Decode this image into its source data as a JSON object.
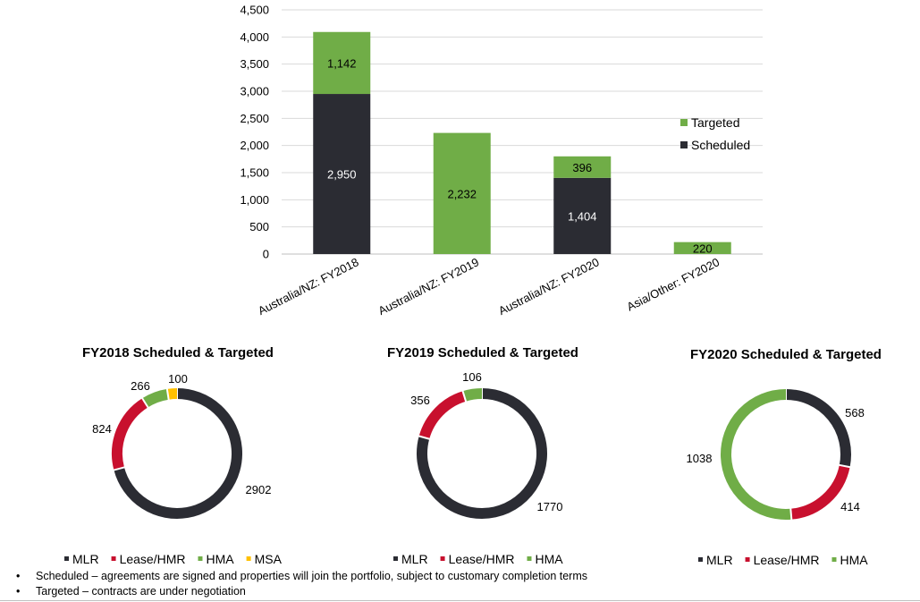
{
  "colors": {
    "targeted": "#70ad47",
    "scheduled": "#2b2c33",
    "mlr": "#2b2c33",
    "lease_hmr": "#c8102e",
    "hma": "#70ad47",
    "msa": "#ffc000",
    "grid": "#d9d9d9"
  },
  "chart_data": [
    {
      "type": "bar",
      "stacked": true,
      "categories": [
        "Australia/NZ: FY2018",
        "Australia/NZ: FY2019",
        "Australia/NZ: FY2020",
        "Asia/Other: FY2020"
      ],
      "series": [
        {
          "name": "Scheduled",
          "values": [
            2950,
            0,
            1404,
            0
          ],
          "labels": [
            "2,950",
            "",
            "1,404",
            ""
          ]
        },
        {
          "name": "Targeted",
          "values": [
            1142,
            2232,
            396,
            220
          ],
          "labels": [
            "1,142",
            "2,232",
            "396",
            "220"
          ]
        }
      ],
      "ylim": [
        0,
        4500
      ],
      "yticks": [
        0,
        500,
        1000,
        1500,
        2000,
        2500,
        3000,
        3500,
        4000,
        4500
      ],
      "ytick_labels": [
        "0",
        "500",
        "1,000",
        "1,500",
        "2,000",
        "2,500",
        "3,000",
        "3,500",
        "4,000",
        "4,500"
      ],
      "grid": true,
      "legend": {
        "placement": "right",
        "entries": [
          "Targeted",
          "Scheduled"
        ]
      }
    },
    {
      "type": "pie",
      "donut": true,
      "title": "FY2018 Scheduled & Targeted",
      "slices": [
        {
          "name": "MLR",
          "value": 2902,
          "label": "2902"
        },
        {
          "name": "Lease/HMR",
          "value": 824,
          "label": "824"
        },
        {
          "name": "HMA",
          "value": 266,
          "label": "266"
        },
        {
          "name": "MSA",
          "value": 100,
          "label": "100"
        }
      ],
      "legend": [
        "MLR",
        "Lease/HMR",
        "HMA",
        "MSA"
      ]
    },
    {
      "type": "pie",
      "donut": true,
      "title": "FY2019 Scheduled & Targeted",
      "slices": [
        {
          "name": "MLR",
          "value": 1770,
          "label": "1770"
        },
        {
          "name": "Lease/HMR",
          "value": 356,
          "label": "356"
        },
        {
          "name": "HMA",
          "value": 106,
          "label": "106"
        }
      ],
      "legend": [
        "MLR",
        "Lease/HMR",
        "HMA"
      ]
    },
    {
      "type": "pie",
      "donut": true,
      "title": "FY2020 Scheduled & Targeted",
      "slices": [
        {
          "name": "MLR",
          "value": 568,
          "label": "568"
        },
        {
          "name": "Lease/HMR",
          "value": 414,
          "label": "414"
        },
        {
          "name": "HMA",
          "value": 1038,
          "label": "1038"
        }
      ],
      "legend": [
        "MLR",
        "Lease/HMR",
        "HMA"
      ]
    }
  ],
  "notes": [
    {
      "bullet": "•",
      "text": "Scheduled – agreements are signed and properties will join the portfolio, subject to customary completion terms"
    },
    {
      "bullet": "•",
      "text": "Targeted – contracts are under negotiation"
    }
  ]
}
